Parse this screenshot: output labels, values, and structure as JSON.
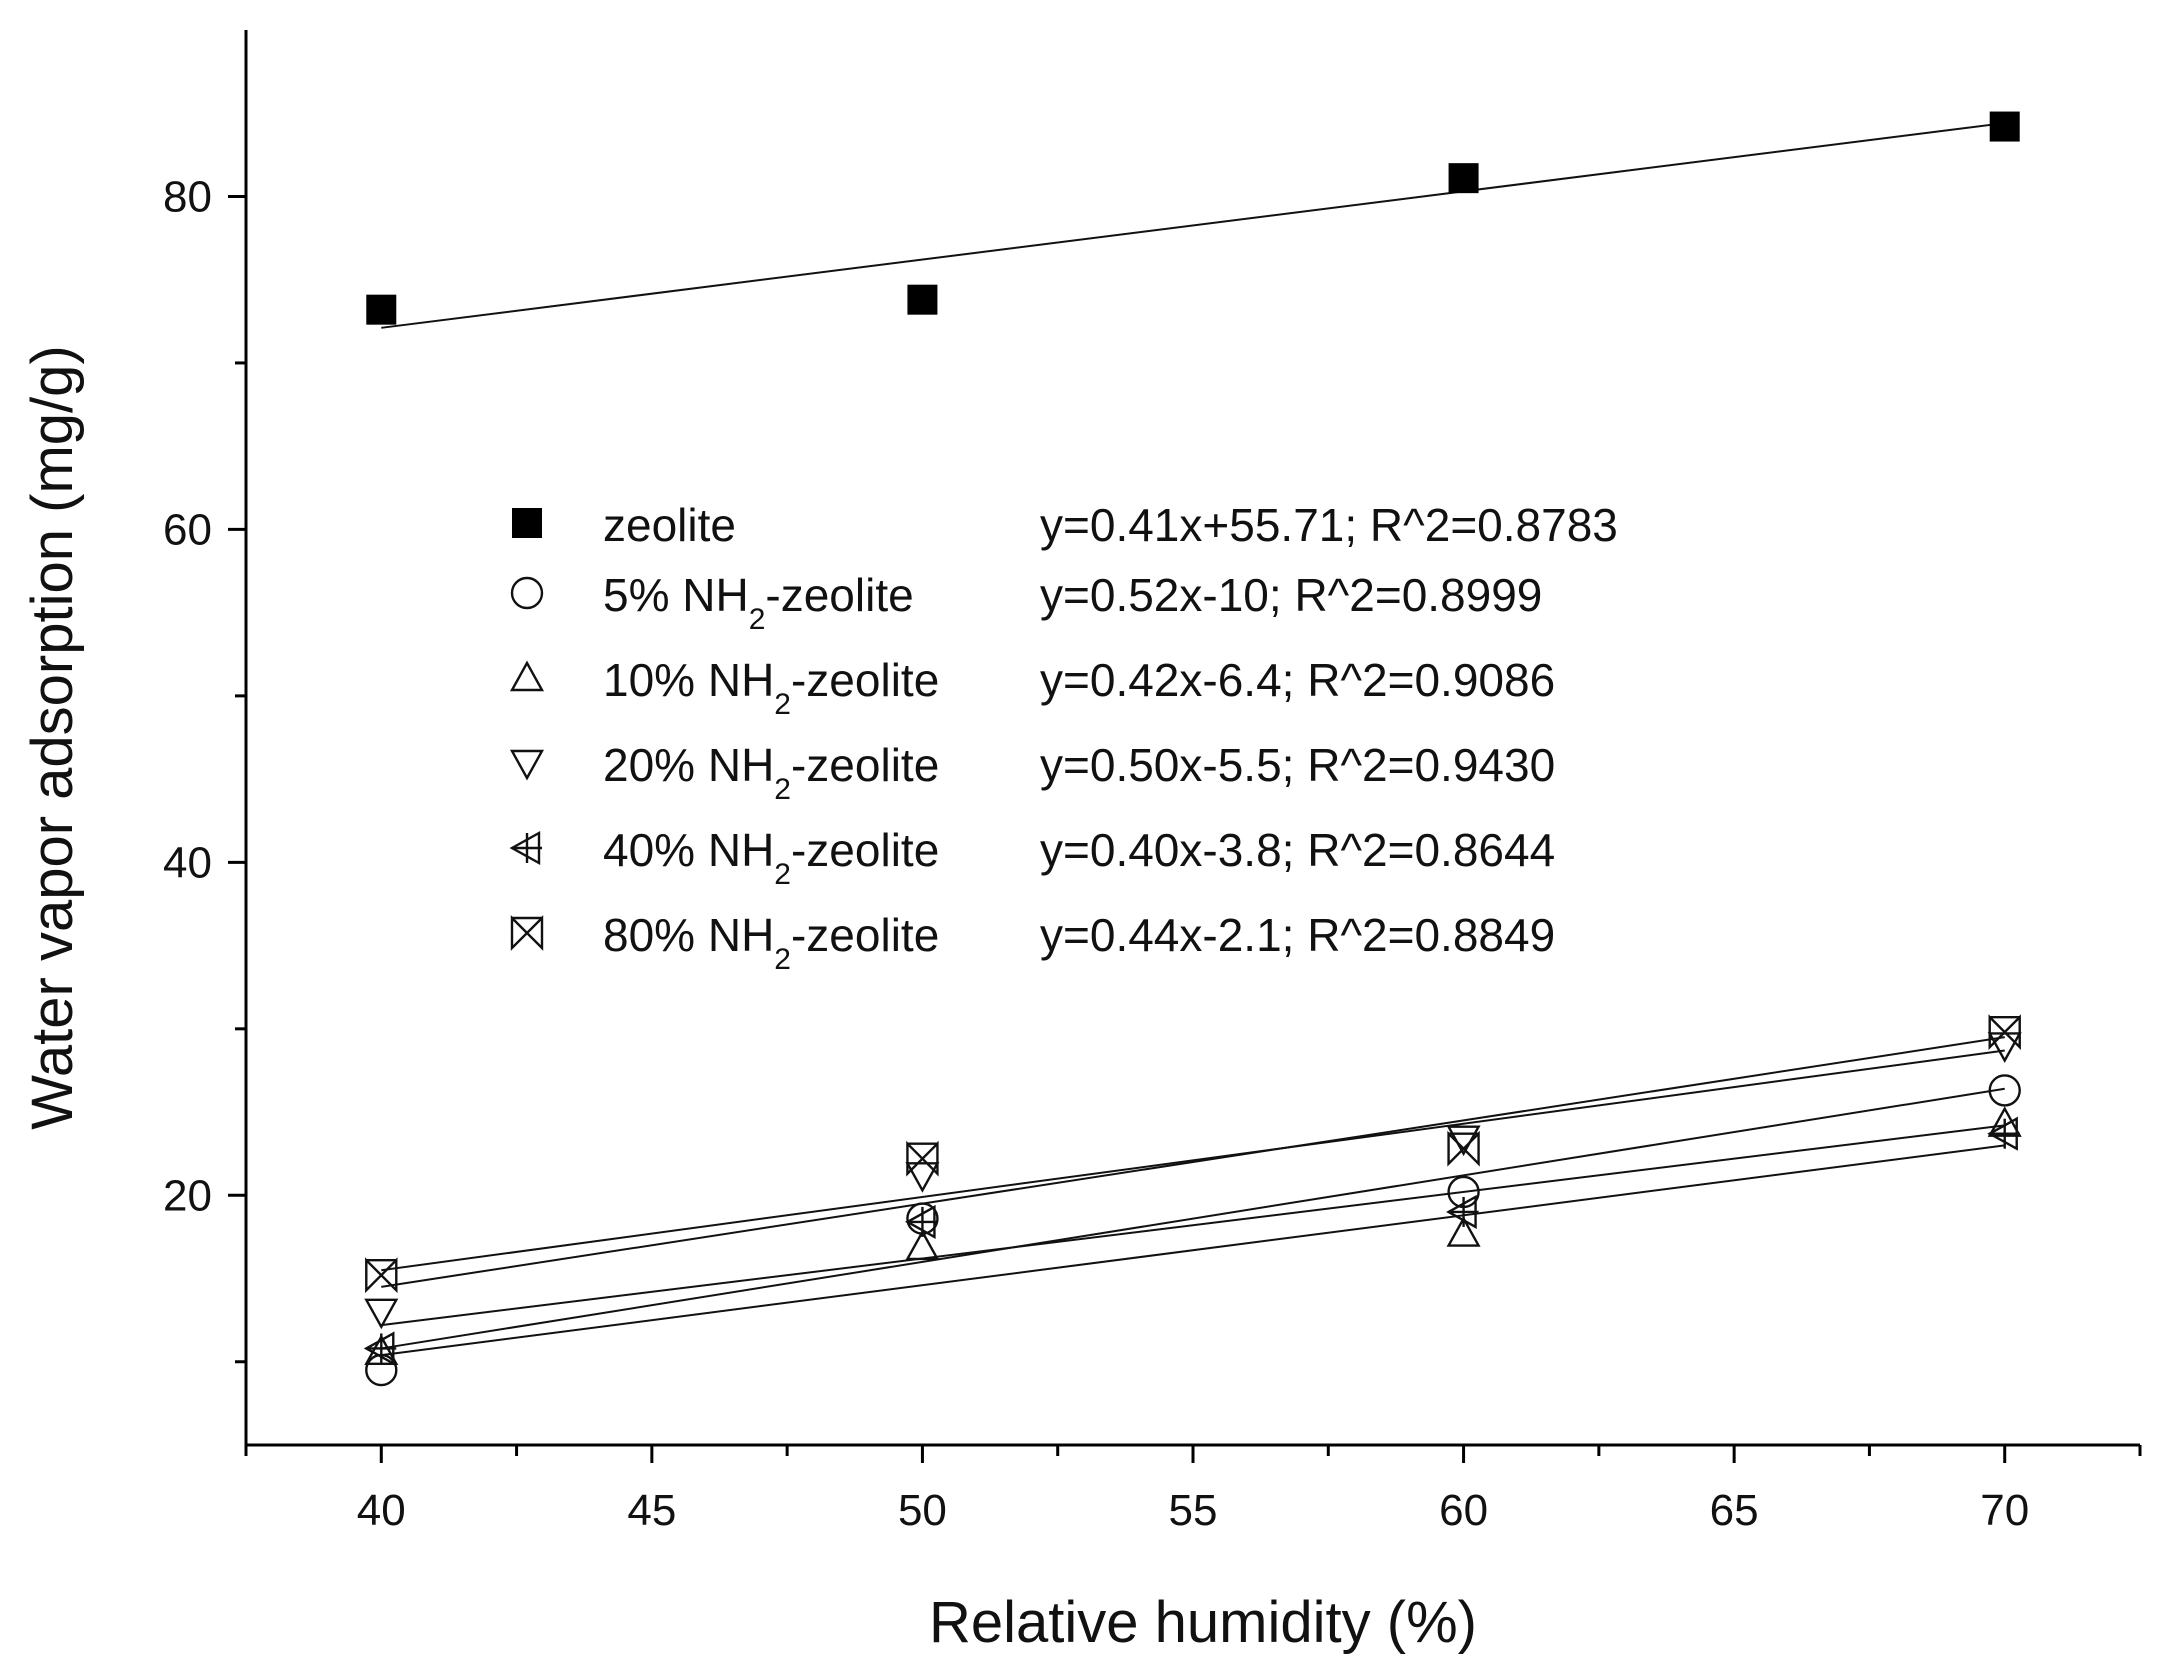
{
  "chart_data": {
    "type": "scatter",
    "title": "",
    "xlabel": "Relative humidity (%)",
    "ylabel": "Water vapor adsorption (mg/g)",
    "xlim": [
      37.5,
      72.5
    ],
    "ylim": [
      5,
      90
    ],
    "x_ticks": [
      40,
      45,
      50,
      55,
      60,
      65,
      70
    ],
    "x_tick_labels": [
      "40",
      "45",
      "50",
      "55",
      "60",
      "65",
      "70"
    ],
    "x_minor_ticks": [
      37.5,
      42.5,
      47.5,
      52.5,
      57.5,
      62.5,
      67.5,
      72.5
    ],
    "y_ticks": [
      20,
      40,
      60,
      80
    ],
    "y_tick_labels": [
      "20",
      "40",
      "60",
      "80"
    ],
    "y_minor_ticks": [
      10,
      30,
      50,
      70
    ],
    "grid": false,
    "legend_position": "center-left",
    "series": [
      {
        "name": "zeolite",
        "name_parts": [
          "zeolite",
          "",
          ""
        ],
        "marker": "square-filled",
        "equation": "y=0.41x+55.71; R^2=0.8783",
        "x": [
          40,
          50,
          60,
          70
        ],
        "values": [
          73.2,
          73.8,
          81.1,
          84.2
        ],
        "fit": [
          0.41,
          55.71
        ]
      },
      {
        "name": "5% NH2-zeolite",
        "name_parts": [
          "5% NH",
          "2",
          "-zeolite"
        ],
        "marker": "circle",
        "equation": "y=0.52x-10; R^2=0.8999",
        "x": [
          40,
          50,
          60,
          70
        ],
        "values": [
          9.5,
          18.6,
          20.2,
          26.3
        ],
        "fit": [
          0.52,
          -10
        ]
      },
      {
        "name": "10% NH2-zeolite",
        "name_parts": [
          "10% NH",
          "2",
          "-zeolite"
        ],
        "marker": "triangle-up",
        "equation": "y=0.42x-6.4; R^2=0.9086",
        "x": [
          40,
          50,
          60,
          70
        ],
        "values": [
          10.6,
          16.9,
          17.7,
          24.3
        ],
        "fit": [
          0.42,
          -6.4
        ]
      },
      {
        "name": "20% NH2-zeolite",
        "name_parts": [
          "20% NH",
          "2",
          "-zeolite"
        ],
        "marker": "triangle-down",
        "equation": "y=0.50x-5.5; R^2=0.9430",
        "x": [
          40,
          50,
          60,
          70
        ],
        "values": [
          13.0,
          21.2,
          23.4,
          29.0
        ],
        "fit": [
          0.5,
          -5.5
        ]
      },
      {
        "name": "40% NH2-zeolite",
        "name_parts": [
          "40% NH",
          "2",
          "-zeolite"
        ],
        "marker": "triangle-left-cross",
        "equation": "y=0.40x-3.8; R^2=0.8644",
        "x": [
          40,
          50,
          60,
          70
        ],
        "values": [
          10.8,
          18.4,
          19.0,
          23.7
        ],
        "fit": [
          0.4,
          -3.8
        ]
      },
      {
        "name": "80% NH2-zeolite",
        "name_parts": [
          "80% NH",
          "2",
          "-zeolite"
        ],
        "marker": "bowtie-x",
        "equation": "y=0.44x-2.1; R^2=0.8849",
        "x": [
          40,
          50,
          60,
          70
        ],
        "values": [
          15.2,
          22.2,
          22.8,
          29.8
        ],
        "fit": [
          0.44,
          -2.1
        ]
      }
    ]
  }
}
